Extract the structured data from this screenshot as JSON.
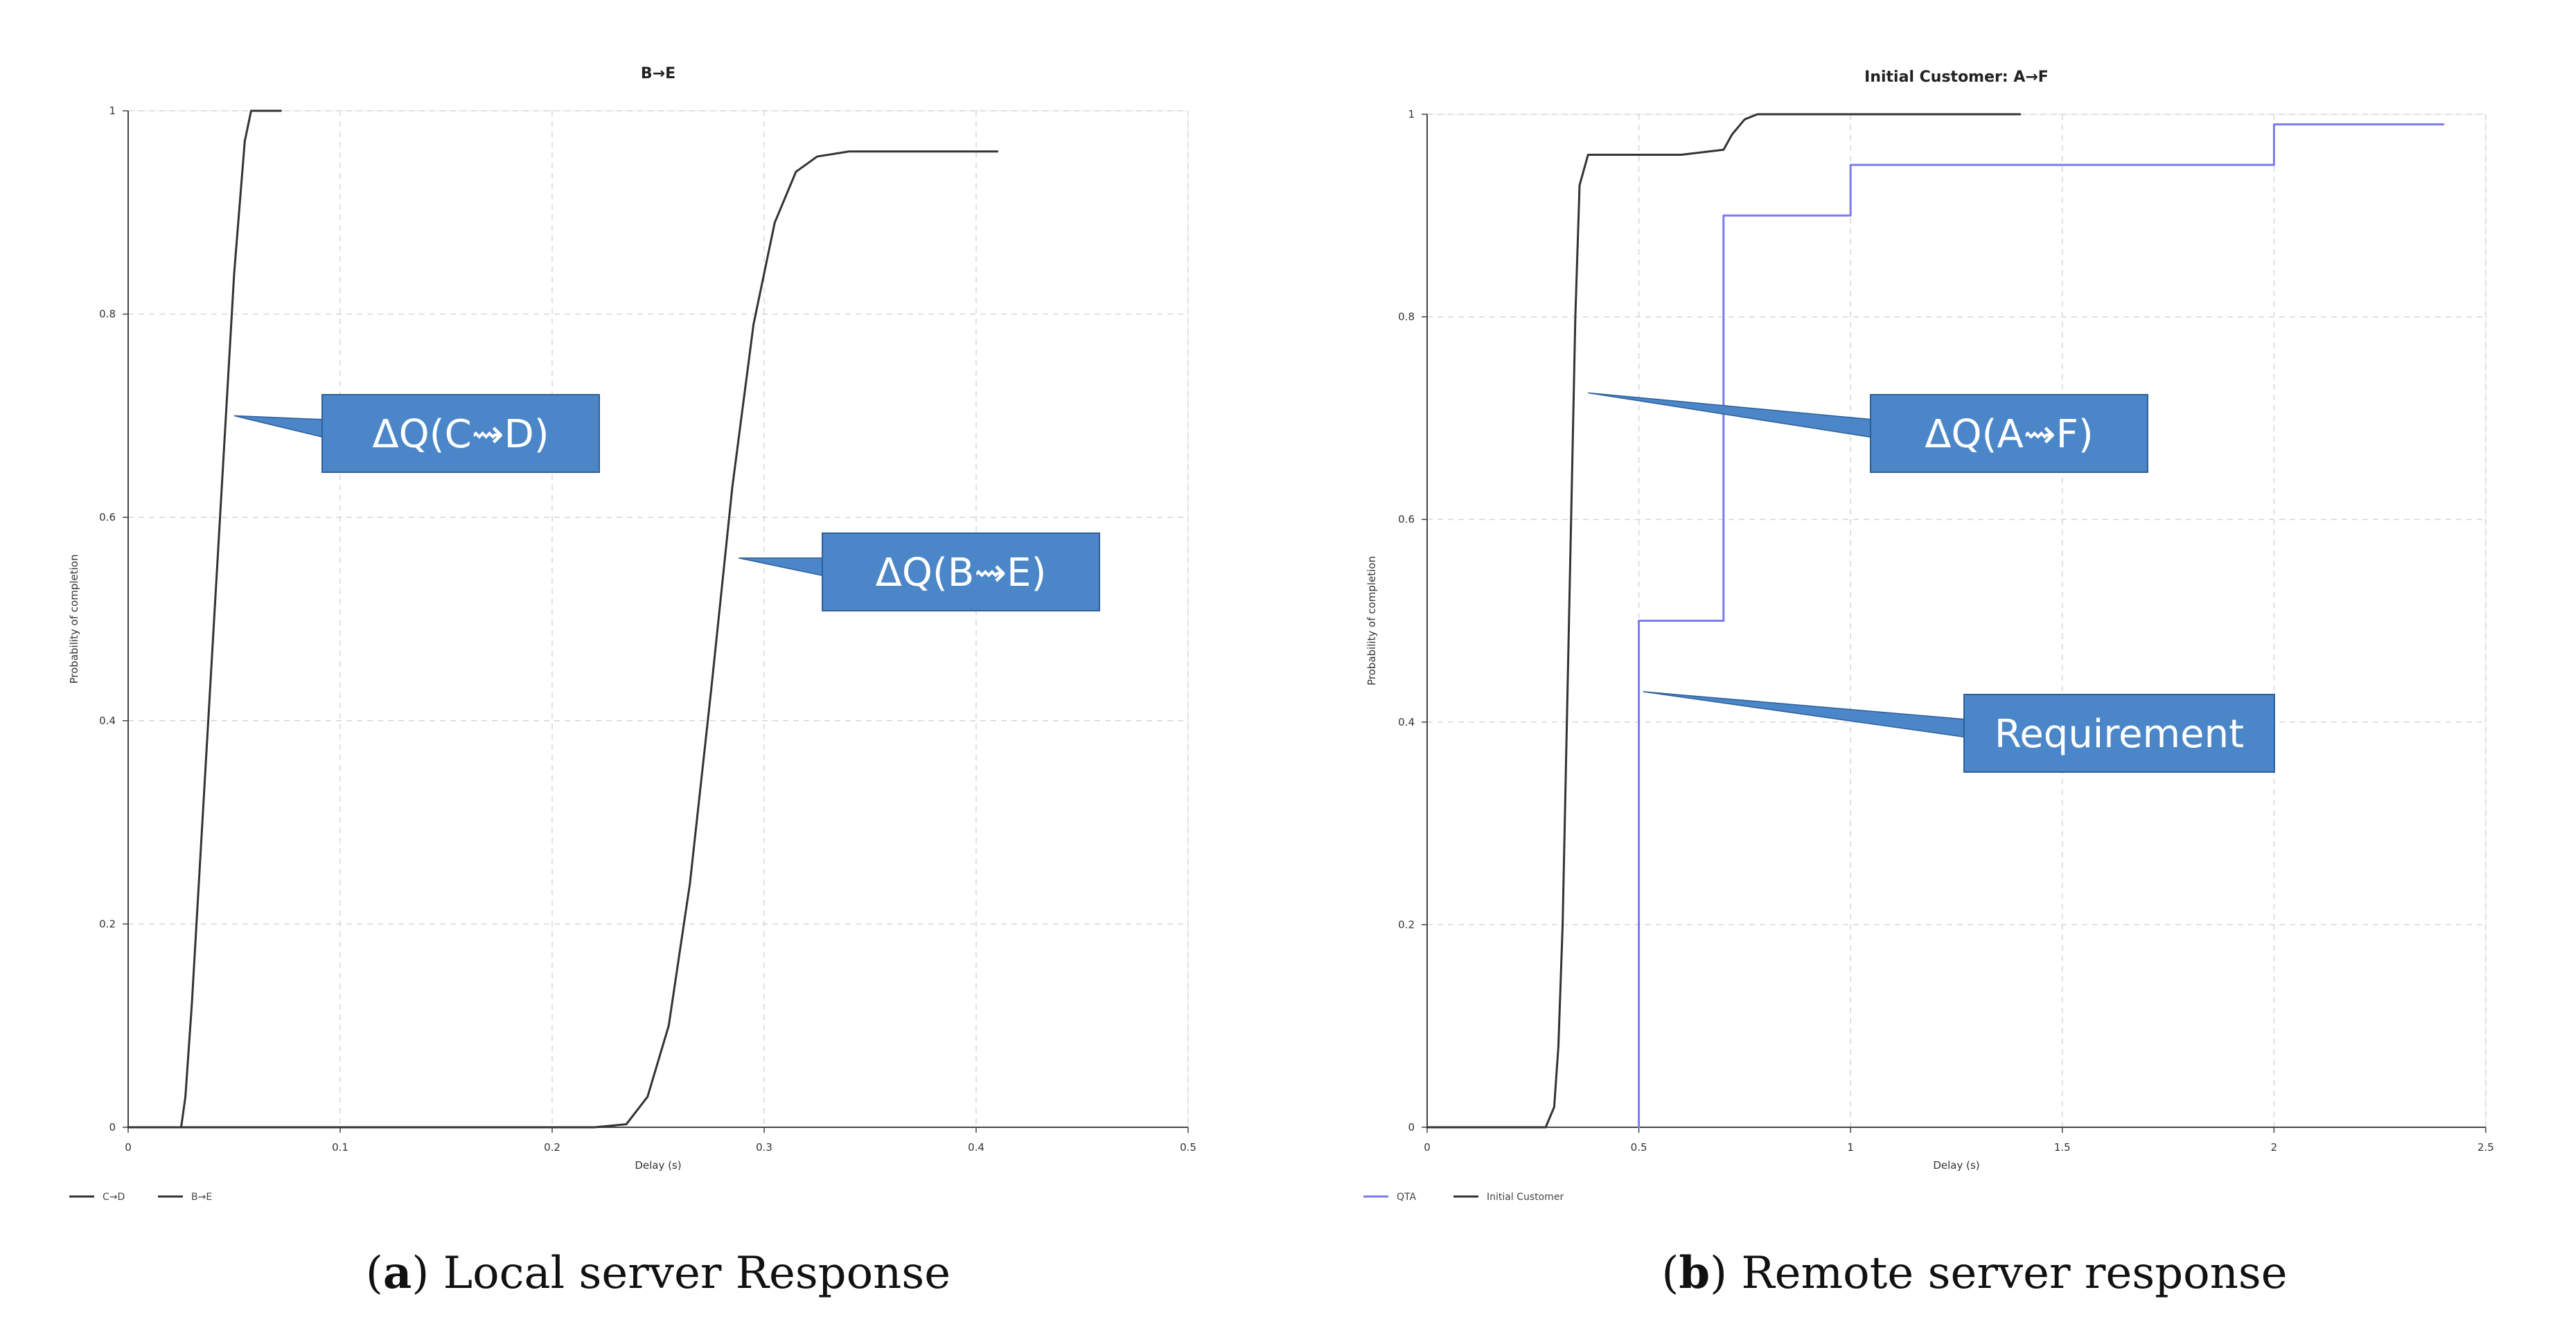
{
  "chart_data": [
    {
      "type": "line",
      "title": "B→E",
      "xlabel": "Delay (s)",
      "ylabel": "Probability of completion",
      "xlim": [
        0,
        0.5
      ],
      "ylim": [
        0,
        1
      ],
      "xticks": [
        0,
        0.1,
        0.2,
        0.3,
        0.4,
        0.5
      ],
      "xtick_labels": [
        "0",
        "0.1",
        "0.2",
        "0.3",
        "0.4",
        "0.5"
      ],
      "yticks": [
        0,
        0.2,
        0.4,
        0.6,
        0.8,
        1
      ],
      "ytick_labels": [
        "0",
        "0.2",
        "0.4",
        "0.6",
        "0.8",
        "1"
      ],
      "grid": true,
      "legend_position": "bottom-left",
      "series": [
        {
          "name": "C→D",
          "color": "#333333",
          "x": [
            0,
            0.025,
            0.027,
            0.03,
            0.035,
            0.04,
            0.045,
            0.05,
            0.055,
            0.058,
            0.06,
            0.072
          ],
          "y": [
            0,
            0,
            0.03,
            0.12,
            0.3,
            0.48,
            0.66,
            0.84,
            0.97,
            1.0,
            1.0,
            1.0
          ]
        },
        {
          "name": "B→E",
          "color": "#333333",
          "x": [
            0,
            0.22,
            0.235,
            0.245,
            0.255,
            0.265,
            0.275,
            0.285,
            0.295,
            0.305,
            0.315,
            0.325,
            0.34,
            0.41
          ],
          "y": [
            0,
            0,
            0.003,
            0.03,
            0.1,
            0.24,
            0.43,
            0.63,
            0.79,
            0.89,
            0.94,
            0.955,
            0.96,
            0.96
          ]
        }
      ],
      "annotations": [
        {
          "text": "ΔQ(C⇝D)",
          "target_x": 0.05,
          "target_y": 0.7
        },
        {
          "text": "ΔQ(B⇝E)",
          "target_x": 0.288,
          "target_y": 0.56
        }
      ],
      "caption_letter": "a",
      "caption_text": " Local server Response"
    },
    {
      "type": "line",
      "title": "Initial Customer: A→F",
      "xlabel": "Delay (s)",
      "ylabel": "Probability of completion",
      "xlim": [
        0,
        2.5
      ],
      "ylim": [
        0,
        1
      ],
      "xticks": [
        0,
        0.5,
        1,
        1.5,
        2,
        2.5
      ],
      "xtick_labels": [
        "0",
        "0.5",
        "1",
        "1.5",
        "2",
        "2.5"
      ],
      "yticks": [
        0,
        0.2,
        0.4,
        0.6,
        0.8,
        1
      ],
      "ytick_labels": [
        "0",
        "0.2",
        "0.4",
        "0.6",
        "0.8",
        "1"
      ],
      "grid": true,
      "legend_position": "bottom-left",
      "series": [
        {
          "name": "QTA",
          "color": "#7b7bf0",
          "x": [
            0.5,
            0.5,
            0.7,
            0.7,
            1.0,
            1.0,
            2.0,
            2.0,
            2.4
          ],
          "y": [
            0,
            0.5,
            0.5,
            0.9,
            0.9,
            0.95,
            0.95,
            0.99,
            0.99
          ]
        },
        {
          "name": "Initial Customer",
          "color": "#333333",
          "x": [
            0,
            0.28,
            0.3,
            0.31,
            0.32,
            0.33,
            0.34,
            0.35,
            0.36,
            0.38,
            0.4,
            0.5,
            0.6,
            0.7,
            0.72,
            0.75,
            0.78,
            0.8,
            1.0,
            1.4
          ],
          "y": [
            0,
            0,
            0.02,
            0.08,
            0.2,
            0.4,
            0.6,
            0.8,
            0.93,
            0.96,
            0.96,
            0.96,
            0.96,
            0.965,
            0.98,
            0.995,
            1.0,
            1.0,
            1.0,
            1.0
          ]
        }
      ],
      "annotations": [
        {
          "text": "ΔQ(A⇝F)",
          "target_x": 0.38,
          "target_y": 0.725
        },
        {
          "text": "Requirement",
          "target_x": 0.51,
          "target_y": 0.43
        }
      ],
      "caption_letter": "b",
      "caption_text": " Remote server response"
    }
  ],
  "colors": {
    "grid": "#d6d6d6",
    "axis": "#444444",
    "callout_fill": "#4a86c8",
    "callout_border": "#2f5f99"
  }
}
